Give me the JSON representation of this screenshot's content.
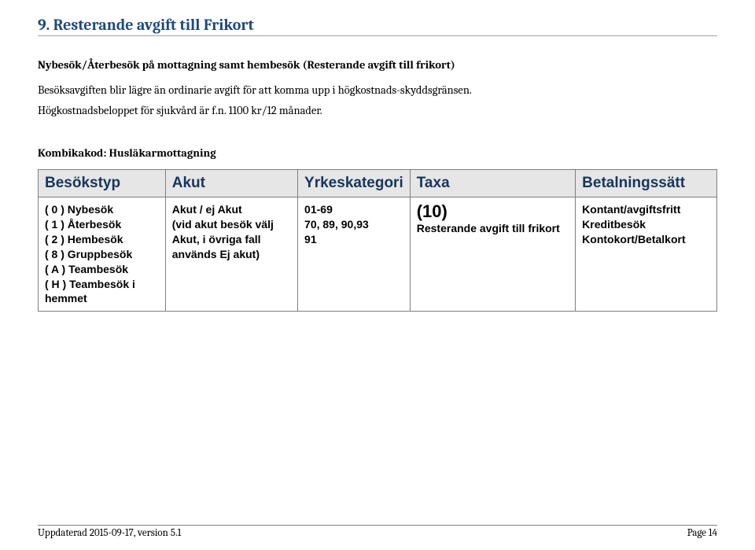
{
  "section_title": "9.  Resterande avgift till Frikort",
  "subhead": "Nybesök/Återbesök på mottagning samt hembesök (Resterande avgift till frikort)",
  "body_line1": "Besöksavgiften blir lägre än ordinarie avgift för att komma upp i högkostnads-skyddsgränsen.",
  "body_line2": "Högkostnadsbeloppet för sjukvård är f.n. 1100 kr/12 månader.",
  "kombi": "Kombikakod: Husläkarmottagning",
  "table": {
    "headers": [
      "Besökstyp",
      "Akut",
      "Yrkeskategori",
      "Taxa",
      "Betalningssätt"
    ],
    "col_widths": [
      "19%",
      "20%",
      "15%",
      "25%",
      "21%"
    ],
    "header_bg": "#e6e6e6",
    "header_color": "#17365d",
    "border_color": "#7f7f7f",
    "row": {
      "besokstyp": [
        "( 0 ) Nybesök",
        "( 1 ) Återbesök",
        "( 2 ) Hembesök",
        "( 8 ) Gruppbesök",
        "( A ) Teambesök",
        "( H ) Teambesök i hemmet"
      ],
      "akut": [
        {
          "text": "Akut / ej Akut",
          "bold": true
        },
        {
          "text": "(vid akut besök välj Akut, i övriga fall används Ej akut)",
          "bold": true
        }
      ],
      "yrkeskategori": [
        {
          "text": "01-69",
          "bold": true
        },
        {
          "text": "70, 89, 90,93",
          "bold": true
        },
        {
          "text": "91",
          "bold": true
        }
      ],
      "taxa_num": "(10)",
      "taxa_desc": "Resterande avgift till frikort",
      "betalning": [
        {
          "text": "Kontant/avgiftsfritt",
          "bold": true
        },
        {
          "text": "Kreditbesök",
          "bold": true
        },
        {
          "text": "Kontokort/Betalkort",
          "bold": true
        }
      ]
    }
  },
  "footer_left": "Uppdaterad 2015-09-17, version 5.1",
  "footer_right": "Page 14"
}
